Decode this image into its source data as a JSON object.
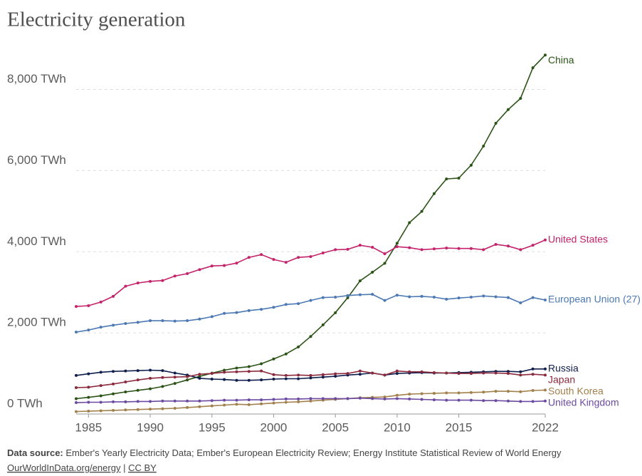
{
  "chart_data": {
    "type": "line",
    "title": "Electricity generation",
    "x": [
      1984,
      1985,
      1986,
      1987,
      1988,
      1989,
      1990,
      1991,
      1992,
      1993,
      1994,
      1995,
      1996,
      1997,
      1998,
      1999,
      2000,
      2001,
      2002,
      2003,
      2004,
      2005,
      2006,
      2007,
      2008,
      2009,
      2010,
      2011,
      2012,
      2013,
      2014,
      2015,
      2016,
      2017,
      2018,
      2019,
      2020,
      2021,
      2022
    ],
    "xlim": [
      1984,
      2022
    ],
    "xticks": [
      1985,
      1990,
      1995,
      2000,
      2005,
      2010,
      2015,
      2022
    ],
    "ylim": [
      0,
      8800
    ],
    "yticks": [
      {
        "value": 0,
        "label": "0 TWh"
      },
      {
        "value": 2000,
        "label": "2,000 TWh"
      },
      {
        "value": 4000,
        "label": "4,000 TWh"
      },
      {
        "value": 6000,
        "label": "6,000 TWh"
      },
      {
        "value": 8000,
        "label": "8,000 TWh"
      }
    ],
    "grid": true,
    "series": [
      {
        "name": "China",
        "color": "#2b5316",
        "values": [
          377,
          411,
          449,
          497,
          545,
          584,
          621,
          678,
          754,
          839,
          928,
          1007,
          1081,
          1134,
          1167,
          1239,
          1356,
          1480,
          1654,
          1911,
          2197,
          2497,
          2866,
          3282,
          3496,
          3715,
          4208,
          4716,
          4994,
          5432,
          5795,
          5815,
          6133,
          6604,
          7166,
          7504,
          7779,
          8534,
          8849
        ]
      },
      {
        "name": "United States",
        "color": "#c4236b",
        "values": [
          2650,
          2670,
          2760,
          2900,
          3150,
          3230,
          3270,
          3290,
          3400,
          3460,
          3560,
          3650,
          3660,
          3720,
          3860,
          3930,
          3810,
          3740,
          3860,
          3880,
          3970,
          4050,
          4060,
          4160,
          4110,
          3950,
          4125,
          4100,
          4050,
          4070,
          4090,
          4080,
          4080,
          4050,
          4180,
          4140,
          4050,
          4160,
          4290
        ]
      },
      {
        "name": "European Union (27)",
        "color": "#4c79b4",
        "values": [
          2020,
          2070,
          2140,
          2190,
          2230,
          2260,
          2300,
          2300,
          2290,
          2300,
          2340,
          2400,
          2480,
          2500,
          2550,
          2580,
          2630,
          2700,
          2720,
          2800,
          2870,
          2880,
          2920,
          2940,
          2950,
          2800,
          2930,
          2890,
          2900,
          2880,
          2830,
          2860,
          2880,
          2910,
          2890,
          2870,
          2740,
          2870,
          2810
        ]
      },
      {
        "name": "Russia",
        "color": "#0f1e4c",
        "values": [
          950,
          990,
          1030,
          1050,
          1060,
          1070,
          1080,
          1070,
          1010,
          960,
          880,
          860,
          850,
          830,
          830,
          840,
          860,
          870,
          870,
          890,
          910,
          930,
          960,
          980,
          1010,
          960,
          1000,
          1010,
          1020,
          1010,
          1010,
          1020,
          1030,
          1040,
          1050,
          1050,
          1040,
          1110,
          1110
        ]
      },
      {
        "name": "Japan",
        "color": "#8b2a3d",
        "values": [
          650,
          660,
          700,
          740,
          790,
          840,
          880,
          900,
          910,
          920,
          980,
          1000,
          1030,
          1040,
          1050,
          1060,
          970,
          950,
          960,
          950,
          970,
          990,
          1000,
          1060,
          1010,
          960,
          1060,
          1040,
          1040,
          1020,
          1010,
          1000,
          1000,
          1010,
          1010,
          1000,
          960,
          980,
          960
        ]
      },
      {
        "name": "South Korea",
        "color": "#a3814d",
        "values": [
          60,
          70,
          80,
          90,
          100,
          110,
          120,
          130,
          140,
          160,
          180,
          200,
          220,
          240,
          230,
          250,
          270,
          290,
          300,
          320,
          340,
          360,
          380,
          400,
          410,
          420,
          460,
          490,
          500,
          510,
          520,
          520,
          530,
          540,
          560,
          560,
          550,
          580,
          590
        ]
      },
      {
        "name": "United Kingdom",
        "color": "#6c4aa1",
        "values": [
          280,
          290,
          290,
          300,
          300,
          310,
          310,
          320,
          320,
          320,
          320,
          330,
          340,
          340,
          350,
          350,
          360,
          370,
          370,
          380,
          380,
          380,
          380,
          390,
          380,
          370,
          380,
          370,
          360,
          350,
          340,
          340,
          340,
          330,
          330,
          320,
          310,
          310,
          320
        ]
      }
    ]
  },
  "footer": {
    "source_label": "Data source:",
    "source": "Ember's Yearly Electricity Data; Ember's European Electricity Review; Energy Institute Statistical Review of World Energy",
    "link": "OurWorldInData.org/energy",
    "separator": "|",
    "license": "CC BY"
  }
}
